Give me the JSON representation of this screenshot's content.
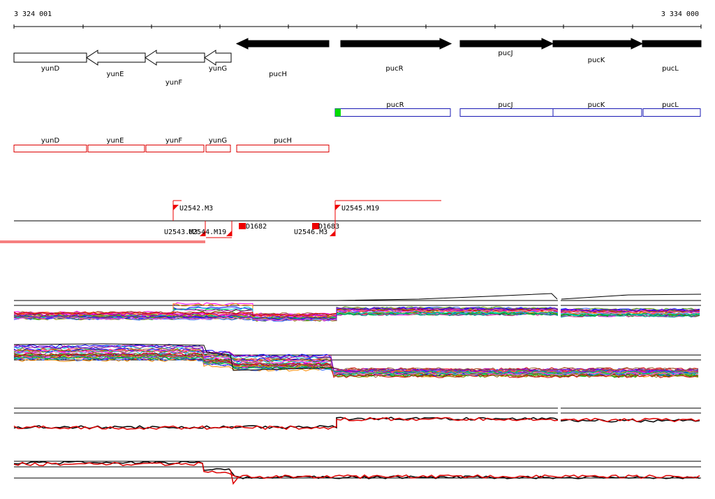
{
  "ruler": {
    "start_label": "3 324 001",
    "end_label": "3 334 000"
  },
  "genes_top": [
    {
      "name": "yunD",
      "style": "outline"
    },
    {
      "name": "yunE",
      "style": "outline"
    },
    {
      "name": "yunF",
      "style": "outline"
    },
    {
      "name": "yunG",
      "style": "outline"
    },
    {
      "name": "pucH",
      "style": "filled"
    },
    {
      "name": "pucR",
      "style": "filled"
    },
    {
      "name": "pucJ",
      "style": "filled"
    },
    {
      "name": "pucK",
      "style": "filled"
    },
    {
      "name": "pucL",
      "style": "filled"
    }
  ],
  "forward_boxes": [
    {
      "name": "pucR",
      "marker_color": "#00dd00"
    },
    {
      "name": "pucJ"
    },
    {
      "name": "pucK"
    },
    {
      "name": "pucL"
    }
  ],
  "reverse_boxes": [
    {
      "name": "yunD"
    },
    {
      "name": "yunE"
    },
    {
      "name": "yunF"
    },
    {
      "name": "yunG"
    },
    {
      "name": "pucH"
    }
  ],
  "features": [
    {
      "label": "U2542.M3"
    },
    {
      "label": "U2545.M19"
    },
    {
      "label": "D1682"
    },
    {
      "label": "D1683"
    },
    {
      "label": "U2543.M3"
    },
    {
      "label": "U2544.M19"
    },
    {
      "label": "U2546.M3"
    }
  ],
  "colors": {
    "forward_box_outline": "#1a1ab4",
    "reverse_box_outline": "#dd0000",
    "feature_red": "#ee0000",
    "gene_fill": "#000000"
  },
  "tracks": [
    {
      "kind": "multi"
    },
    {
      "kind": "multi"
    },
    {
      "kind": "pair"
    },
    {
      "kind": "pair"
    }
  ]
}
